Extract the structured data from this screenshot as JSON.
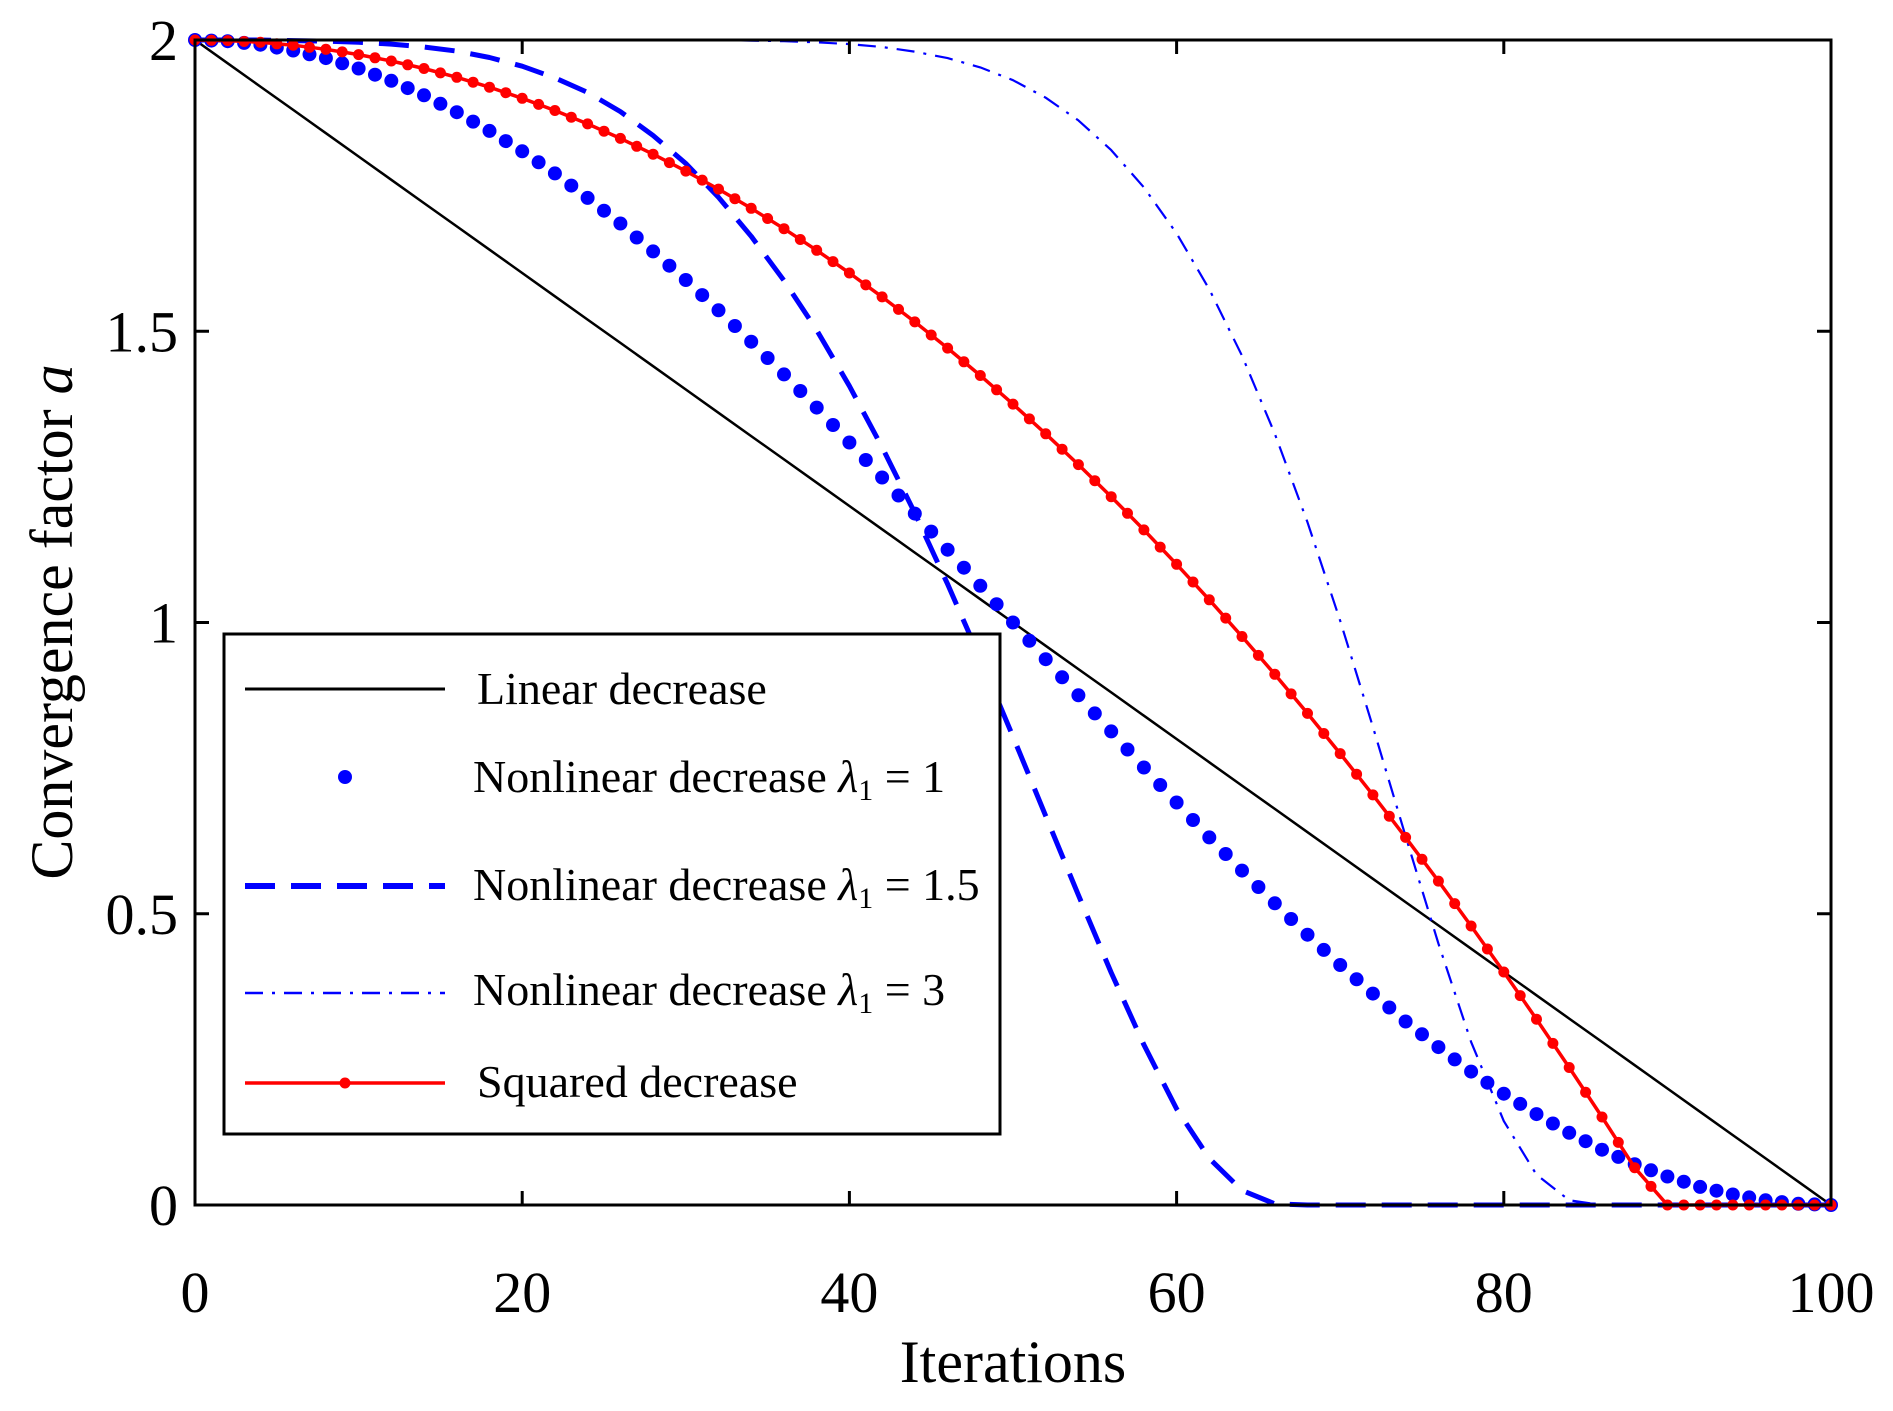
{
  "chart_data": {
    "type": "line",
    "xlabel": "Iterations",
    "ylabel": "Convergence factor a",
    "ylabel_main": "Convergence factor ",
    "ylabel_var": "a",
    "xlim": [
      0,
      100
    ],
    "ylim": [
      0,
      2
    ],
    "x_ticks": [
      0,
      20,
      40,
      60,
      80,
      100
    ],
    "y_ticks": [
      0,
      0.5,
      1,
      1.5,
      2
    ],
    "x_tick_labels": [
      "0",
      "20",
      "40",
      "60",
      "80",
      "100"
    ],
    "y_tick_labels": [
      "0",
      "0.5",
      "1",
      "1.5",
      "2"
    ],
    "grid": false,
    "legend_position": "lower-left",
    "x": [
      0,
      2,
      4,
      6,
      8,
      10,
      12,
      14,
      16,
      18,
      20,
      22,
      24,
      26,
      28,
      30,
      32,
      34,
      36,
      38,
      40,
      42,
      44,
      46,
      48,
      50,
      52,
      54,
      56,
      58,
      60,
      62,
      64,
      66,
      68,
      70,
      72,
      74,
      76,
      78,
      80,
      82,
      84,
      86,
      88,
      90,
      92,
      94,
      96,
      98,
      100
    ],
    "series": [
      {
        "name": "Linear decrease",
        "color": "#000000",
        "style": "solid",
        "values": [
          2.0,
          1.96,
          1.92,
          1.88,
          1.84,
          1.8,
          1.76,
          1.72,
          1.68,
          1.64,
          1.6,
          1.56,
          1.52,
          1.48,
          1.44,
          1.4,
          1.36,
          1.32,
          1.28,
          1.24,
          1.2,
          1.16,
          1.12,
          1.08,
          1.04,
          1.0,
          0.96,
          0.92,
          0.88,
          0.84,
          0.8,
          0.76,
          0.72,
          0.68,
          0.64,
          0.6,
          0.56,
          0.52,
          0.48,
          0.44,
          0.4,
          0.36,
          0.32,
          0.28,
          0.24,
          0.2,
          0.16,
          0.12,
          0.08,
          0.04,
          0.0
        ]
      },
      {
        "name": "Nonlinear decrease ",
        "lambda_symbol": "λ",
        "lambda_sub": "1",
        "lambda_value": " = 1",
        "color": "#0000ff",
        "style": "dotted",
        "values": [
          2.0,
          1.998,
          1.992,
          1.982,
          1.969,
          1.951,
          1.93,
          1.905,
          1.876,
          1.844,
          1.809,
          1.771,
          1.729,
          1.685,
          1.637,
          1.588,
          1.536,
          1.482,
          1.426,
          1.369,
          1.309,
          1.249,
          1.187,
          1.125,
          1.063,
          1.0,
          0.937,
          0.875,
          0.813,
          0.751,
          0.691,
          0.631,
          0.574,
          0.518,
          0.464,
          0.412,
          0.363,
          0.315,
          0.271,
          0.229,
          0.191,
          0.156,
          0.124,
          0.095,
          0.07,
          0.049,
          0.031,
          0.018,
          0.008,
          0.002,
          0.0
        ]
      },
      {
        "name": "Nonlinear decrease ",
        "lambda_symbol": "λ",
        "lambda_sub": "1",
        "lambda_value": " = 1.5",
        "color": "#0000ff",
        "style": "dashed",
        "values": [
          2.0,
          2.0,
          2.0,
          1.999,
          1.998,
          1.996,
          1.993,
          1.988,
          1.981,
          1.97,
          1.955,
          1.935,
          1.91,
          1.877,
          1.836,
          1.788,
          1.73,
          1.663,
          1.587,
          1.502,
          1.406,
          1.301,
          1.188,
          1.066,
          0.938,
          0.804,
          0.668,
          0.532,
          0.399,
          0.275,
          0.165,
          0.08,
          0.025,
          0.002,
          0.0,
          0.0,
          0.0,
          0.0,
          0.0,
          0.0,
          0.0,
          0.0,
          0.0,
          0.0,
          0.0,
          0.0,
          0.0,
          0.0,
          0.0,
          0.0,
          0.0
        ]
      },
      {
        "name": "Nonlinear decrease ",
        "lambda_symbol": "λ",
        "lambda_sub": "1",
        "lambda_value": " = 3",
        "color": "#0000ff",
        "style": "dashdot",
        "values": [
          2.0,
          2.0,
          2.0,
          2.0,
          2.0,
          2.0,
          2.0,
          2.0,
          2.0,
          2.0,
          2.0,
          2.0,
          2.0,
          2.0,
          2.0,
          2.0,
          2.0,
          1.999,
          1.998,
          1.996,
          1.993,
          1.988,
          1.98,
          1.969,
          1.953,
          1.931,
          1.901,
          1.862,
          1.811,
          1.747,
          1.668,
          1.572,
          1.458,
          1.324,
          1.172,
          1.003,
          0.821,
          0.633,
          0.449,
          0.28,
          0.144,
          0.052,
          0.008,
          0.0,
          0.0,
          0.0,
          0.0,
          0.0,
          0.0,
          0.0,
          0.0
        ]
      },
      {
        "name": "Squared decrease",
        "color": "#ff0000",
        "style": "solid-dot",
        "values": [
          2.0,
          1.999,
          1.996,
          1.991,
          1.984,
          1.975,
          1.964,
          1.951,
          1.936,
          1.919,
          1.9,
          1.879,
          1.856,
          1.831,
          1.804,
          1.775,
          1.744,
          1.711,
          1.676,
          1.639,
          1.6,
          1.559,
          1.516,
          1.471,
          1.424,
          1.375,
          1.324,
          1.271,
          1.216,
          1.159,
          1.1,
          1.039,
          0.976,
          0.911,
          0.844,
          0.775,
          0.704,
          0.631,
          0.556,
          0.479,
          0.4,
          0.319,
          0.236,
          0.151,
          0.064,
          0.0,
          0.0,
          0.0,
          0.0,
          0.0,
          0.0
        ]
      }
    ]
  }
}
